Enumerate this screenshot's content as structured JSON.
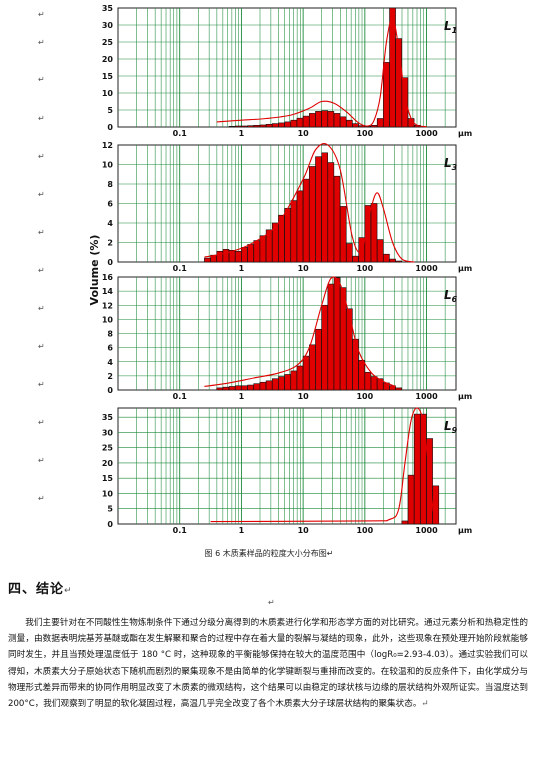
{
  "figure": {
    "ylabel": "Volume (%)",
    "xunit": "μm",
    "xticks": [
      "0.1",
      "1",
      "10",
      "100",
      "1000"
    ]
  },
  "chart_data": [
    {
      "type": "bar",
      "label": "L1",
      "ylim": [
        0,
        35
      ],
      "yticks": [
        0,
        5,
        10,
        15,
        20,
        25,
        30,
        35
      ],
      "x_log_range": [
        0.01,
        3000
      ],
      "bars_logd": [
        -0.2,
        -0.1,
        0,
        0.1,
        0.2,
        0.3,
        0.4,
        0.5,
        0.6,
        0.7,
        0.8,
        0.9,
        1.0,
        1.1,
        1.2,
        1.3,
        1.4,
        1.5,
        1.6,
        1.7,
        1.8,
        1.9,
        2.0,
        2.1,
        2.2,
        2.3,
        2.4,
        2.5,
        2.6,
        2.7,
        2.8
      ],
      "bars_values": [
        0.2,
        0.3,
        0.3,
        0.4,
        0.5,
        0.6,
        0.8,
        1.0,
        1.2,
        1.5,
        2.0,
        2.6,
        3.2,
        4.0,
        4.6,
        4.8,
        4.6,
        4.0,
        3.0,
        2.0,
        1.0,
        0.4,
        0.2,
        0.5,
        2.5,
        19.0,
        38.0,
        26.0,
        14.5,
        2.5,
        0.5
      ],
      "curve_logd": [
        -0.4,
        0,
        0.4,
        0.8,
        1.1,
        1.3,
        1.5,
        1.7,
        1.9,
        2.05,
        2.15,
        2.25,
        2.35,
        2.45,
        2.55,
        2.65,
        2.75,
        2.85,
        3.0
      ],
      "curve_values": [
        1.5,
        2.0,
        2.5,
        3.5,
        5.5,
        7.5,
        7.0,
        4.5,
        1.2,
        0.3,
        2.0,
        9.0,
        25.0,
        32.0,
        23.0,
        9.0,
        2.5,
        0.5,
        0.1
      ]
    },
    {
      "type": "bar",
      "label": "L3",
      "ylim": [
        0,
        12
      ],
      "yticks": [
        0,
        2,
        4,
        6,
        8,
        10,
        12
      ],
      "x_log_range": [
        0.01,
        3000
      ],
      "bars_logd": [
        -0.6,
        -0.5,
        -0.4,
        -0.3,
        -0.2,
        -0.1,
        0,
        0.1,
        0.2,
        0.3,
        0.4,
        0.5,
        0.6,
        0.7,
        0.8,
        0.9,
        1.0,
        1.1,
        1.2,
        1.3,
        1.4,
        1.5,
        1.6,
        1.7,
        1.8,
        1.9,
        2.0,
        2.1,
        2.2,
        2.3,
        2.4,
        2.5
      ],
      "bars_values": [
        0.4,
        0.7,
        1.1,
        1.3,
        1.2,
        1.1,
        1.5,
        1.8,
        2.2,
        2.7,
        3.3,
        4.0,
        4.8,
        5.5,
        6.3,
        7.3,
        8.5,
        9.8,
        10.8,
        11.2,
        10.2,
        8.8,
        5.7,
        1.9,
        0.6,
        2.5,
        5.8,
        6.0,
        2.3,
        0.8,
        0.3,
        0.1
      ],
      "curve_logd": [
        -0.6,
        -0.2,
        0.2,
        0.6,
        1.0,
        1.2,
        1.4,
        1.6,
        1.8,
        1.95,
        2.1,
        2.2,
        2.3,
        2.45,
        2.6,
        2.8
      ],
      "curve_values": [
        0.5,
        1.0,
        2.0,
        4.0,
        8.5,
        11.5,
        12.3,
        9.5,
        2.5,
        1.2,
        5.5,
        7.1,
        5.5,
        2.0,
        0.3,
        0.0
      ]
    },
    {
      "type": "bar",
      "label": "L6",
      "ylim": [
        0,
        16
      ],
      "yticks": [
        0,
        2,
        4,
        6,
        8,
        10,
        12,
        14,
        16
      ],
      "x_log_range": [
        0.01,
        3000
      ],
      "bars_logd": [
        -0.4,
        -0.3,
        -0.2,
        -0.1,
        0,
        0.1,
        0.2,
        0.3,
        0.4,
        0.5,
        0.6,
        0.7,
        0.8,
        0.9,
        1.0,
        1.1,
        1.2,
        1.3,
        1.4,
        1.5,
        1.6,
        1.7,
        1.8,
        1.9,
        2.0,
        2.1,
        2.2,
        2.3,
        2.4,
        2.5
      ],
      "bars_values": [
        0.3,
        0.4,
        0.5,
        0.6,
        0.6,
        0.7,
        0.9,
        1.1,
        1.3,
        1.6,
        1.9,
        2.2,
        2.7,
        3.4,
        4.8,
        6.4,
        8.6,
        12.0,
        15.0,
        15.9,
        14.5,
        11.5,
        7.2,
        4.2,
        2.5,
        1.9,
        1.6,
        1.0,
        0.6,
        0.3
      ],
      "curve_logd": [
        -0.6,
        -0.2,
        0.2,
        0.6,
        0.9,
        1.1,
        1.3,
        1.45,
        1.6,
        1.75,
        1.9,
        2.1,
        2.3,
        2.5
      ],
      "curve_values": [
        0.5,
        1.0,
        1.7,
        2.4,
        3.5,
        6.0,
        12.0,
        15.8,
        15.0,
        10.5,
        5.5,
        2.5,
        1.2,
        0.5
      ]
    },
    {
      "type": "bar",
      "label": "L9",
      "ylim": [
        0,
        38
      ],
      "yticks": [
        0,
        5,
        10,
        15,
        20,
        25,
        30,
        35
      ],
      "x_log_range": [
        0.01,
        3000
      ],
      "bars_logd": [
        2.6,
        2.7,
        2.8,
        2.9,
        3.0,
        3.1
      ],
      "bars_values": [
        1.0,
        16.0,
        36.0,
        36.0,
        28.0,
        12.5
      ],
      "curve_logd": [
        -0.5,
        2.0,
        2.4,
        2.55,
        2.65,
        2.75,
        2.85,
        2.95,
        3.05,
        3.12,
        3.2
      ],
      "curve_values": [
        0.8,
        1.0,
        1.5,
        5.0,
        20.0,
        34.0,
        38.0,
        33.0,
        15.0,
        3.0,
        0.5
      ]
    }
  ],
  "caption": "图 6 木质素样品的粒度大小分布图",
  "heading": "四、结论",
  "paragraph": "我们主要针对在不同酸性生物炼制条件下通过分级分离得到的木质素进行化学和形态学方面的对比研究。通过元素分析和热稳定性的测量，由数据表明烷基芳基醚或酯在发生解聚和聚合的过程中存在着大量的裂解与凝结的现象，此外，这些现象在预处理开始阶段就能够同时发生，并且当预处理温度低于 180 °C 时，这种现象的平衡能够保持在较大的温度范围中（logR₀=2.93-4.03）。通过实验我们可以得知，木质素大分子原始状态下随机而剧烈的聚集现象不是由简单的化学键断裂与重排而改变的。在较温和的反应条件下，由化学成分与物理形式差异而带来的协同作用明显改变了木质素的微观结构，这个结果可以由稳定的球状核与边缘的层状结构外观所证实。当温度达到 200°C，我们观察到了明显的软化凝固过程，高温几乎完全改变了各个木质素大分子球层状结构的聚集状态。",
  "marks": {
    "return": "↵",
    "return_left_0": "↵",
    "return_left_1": "↵",
    "return_left_2": "↵",
    "return_left_3": "↵",
    "return_left_4": "↵",
    "return_left_5": "↵",
    "return_left_6": "↵",
    "return_left_7": "↵",
    "return_left_8": "↵",
    "return_left_9": "↵",
    "return_left_10": "↵",
    "return_left_11": "↵",
    "return_left_12": "↵",
    "return_left_13": "↵"
  },
  "colors": {
    "bar": "#e00000",
    "curve": "#e00000",
    "grid": "#1a8a3a"
  }
}
